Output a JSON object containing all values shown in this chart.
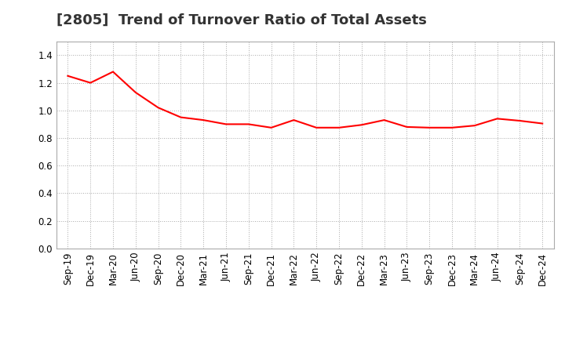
{
  "title": "[2805]  Trend of Turnover Ratio of Total Assets",
  "labels": [
    "Sep-19",
    "Dec-19",
    "Mar-20",
    "Jun-20",
    "Sep-20",
    "Dec-20",
    "Mar-21",
    "Jun-21",
    "Sep-21",
    "Dec-21",
    "Mar-22",
    "Jun-22",
    "Sep-22",
    "Dec-22",
    "Mar-23",
    "Jun-23",
    "Sep-23",
    "Dec-23",
    "Mar-24",
    "Jun-24",
    "Sep-24",
    "Dec-24"
  ],
  "values": [
    1.25,
    1.2,
    1.28,
    1.13,
    1.02,
    0.95,
    0.93,
    0.9,
    0.9,
    0.875,
    0.93,
    0.875,
    0.875,
    0.895,
    0.93,
    0.88,
    0.875,
    0.875,
    0.89,
    0.94,
    0.925,
    0.905
  ],
  "line_color": "#FF0000",
  "line_width": 1.5,
  "ylim": [
    0.0,
    1.5
  ],
  "yticks": [
    0.0,
    0.2,
    0.4,
    0.6,
    0.8,
    1.0,
    1.2,
    1.4
  ],
  "grid_color": "#aaaaaa",
  "grid_style": "dotted",
  "background_color": "#ffffff",
  "title_fontsize": 13,
  "tick_fontsize": 8.5,
  "title_color": "#333333"
}
